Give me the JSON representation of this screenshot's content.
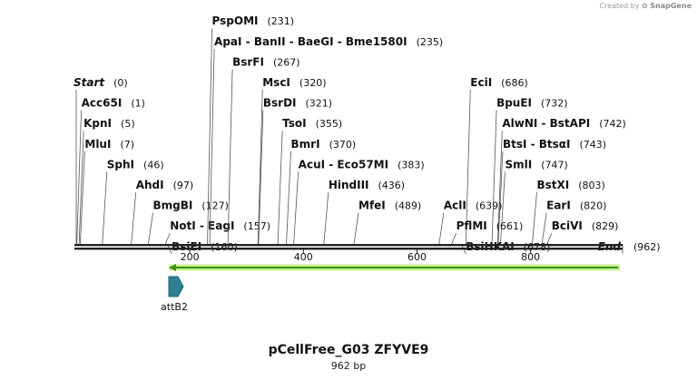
{
  "credit": {
    "prefix": "Created by",
    "brand": "SnapGene",
    "logo_icon": "snapgene-logo-icon"
  },
  "plasmid": {
    "name": "pCellFree_G03 ZFYVE9",
    "length_label": "962 bp",
    "length": 962
  },
  "axis": {
    "ticks": [
      200,
      400,
      600,
      800
    ]
  },
  "sites": [
    {
      "name": "Start",
      "pos": "(0)",
      "bp": 0,
      "row": 0,
      "italic": true
    },
    {
      "name": "Acc65I",
      "pos": "(1)",
      "bp": 1,
      "row": 1
    },
    {
      "name": "KpnI",
      "pos": "(5)",
      "bp": 5,
      "row": 2
    },
    {
      "name": "MluI",
      "pos": "(7)",
      "bp": 7,
      "row": 3
    },
    {
      "name": "SphI",
      "pos": "(46)",
      "bp": 46,
      "row": 4
    },
    {
      "name": "AhdI",
      "pos": "(97)",
      "bp": 97,
      "row": 5
    },
    {
      "name": "BmgBI",
      "pos": "(127)",
      "bp": 127,
      "row": 6
    },
    {
      "name": "NotI  -  EagI",
      "pos": "(157)",
      "bp": 157,
      "row": 7
    },
    {
      "name": "BsiEI",
      "pos": "(160)",
      "bp": 160,
      "row": 8
    },
    {
      "name": "PspOMI",
      "pos": "(231)",
      "bp": 231,
      "row": -3
    },
    {
      "name": "ApaI  -  BanII  -  BaeGI  -  Bme1580I",
      "pos": "(235)",
      "bp": 235,
      "row": -2
    },
    {
      "name": "BsrFI",
      "pos": "(267)",
      "bp": 267,
      "row": -1
    },
    {
      "name": "MscI",
      "pos": "(320)",
      "bp": 320,
      "row": 0
    },
    {
      "name": "BsrDI",
      "pos": "(321)",
      "bp": 321,
      "row": 1
    },
    {
      "name": "TsoI",
      "pos": "(355)",
      "bp": 355,
      "row": 2
    },
    {
      "name": "BmrI",
      "pos": "(370)",
      "bp": 370,
      "row": 3
    },
    {
      "name": "AcuI  -  Eco57MI",
      "pos": "(383)",
      "bp": 383,
      "row": 4
    },
    {
      "name": "HindIII",
      "pos": "(436)",
      "bp": 436,
      "row": 5
    },
    {
      "name": "MfeI",
      "pos": "(489)",
      "bp": 489,
      "row": 6
    },
    {
      "name": "EciI",
      "pos": "(686)",
      "bp": 686,
      "row": 0
    },
    {
      "name": "BpuEI",
      "pos": "(732)",
      "bp": 732,
      "row": 1
    },
    {
      "name": "AlwNI  -  BstAPI",
      "pos": "(742)",
      "bp": 742,
      "row": 2
    },
    {
      "name": "BtsI  -  BtsαI",
      "pos": "(743)",
      "bp": 743,
      "row": 3
    },
    {
      "name": "SmlI",
      "pos": "(747)",
      "bp": 747,
      "row": 4
    },
    {
      "name": "AclI",
      "pos": "(639)",
      "bp": 639,
      "row": 6
    },
    {
      "name": "PflMI",
      "pos": "(661)",
      "bp": 661,
      "row": 7
    },
    {
      "name": "BsiHKAI",
      "pos": "(678)",
      "bp": 678,
      "row": 8
    },
    {
      "name": "BstXI",
      "pos": "(803)",
      "bp": 803,
      "row": 5
    },
    {
      "name": "EarI",
      "pos": "(820)",
      "bp": 820,
      "row": 6
    },
    {
      "name": "BciVI",
      "pos": "(829)",
      "bp": 829,
      "row": 7
    },
    {
      "name": "End",
      "pos": "(962)",
      "bp": 962,
      "row": 8,
      "italic": true
    }
  ],
  "features": [
    {
      "name": "attB2",
      "start_bp": 160,
      "end_bp": 185,
      "type": "site",
      "color": "#2f7f96"
    },
    {
      "name": "",
      "start_bp": 166,
      "end_bp": 960,
      "type": "gene-arrow",
      "direction": "reverse",
      "color": "#3a8f1e"
    }
  ],
  "colors": {
    "sequence_line": "#222222",
    "gene_fill": "#c8f08a",
    "gene_stroke": "#3a8f1e"
  }
}
